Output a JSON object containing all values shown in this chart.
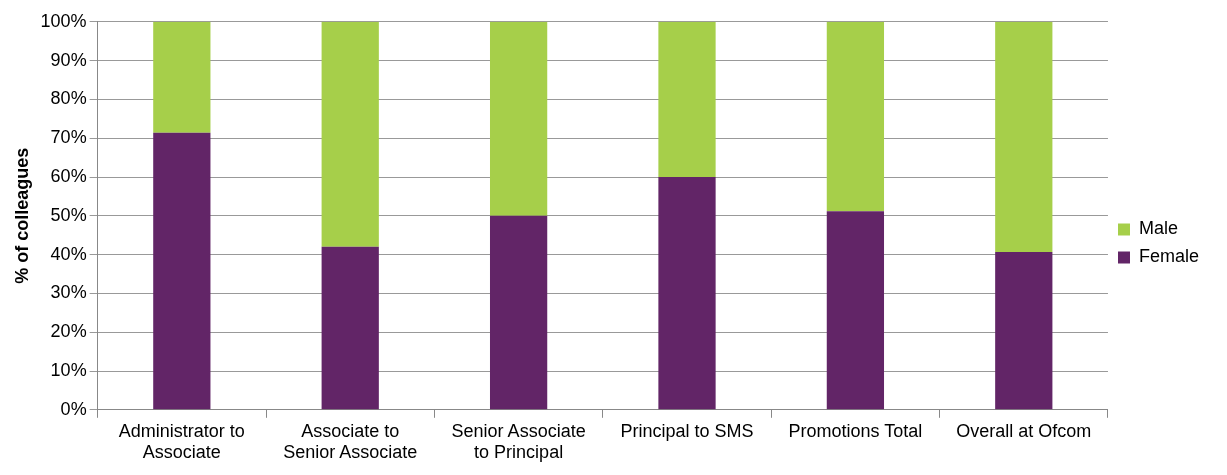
{
  "chart_data": {
    "type": "bar",
    "stacked": true,
    "ylabel": "% of colleagues",
    "categories": [
      "Administrator to Associate",
      "Associate to Senior Associate",
      "Senior Associate to Principal",
      "Principal to SMS",
      "Promotions Total",
      "Overall at Ofcom"
    ],
    "series": [
      {
        "name": "Female",
        "color": "#622567",
        "values": [
          71.4,
          42,
          50,
          60,
          51.2,
          40.7
        ]
      },
      {
        "name": "Male",
        "color": "#a6cf4a",
        "values": [
          28.6,
          58,
          50,
          40,
          48.8,
          59.3
        ]
      }
    ],
    "ylim": [
      0,
      100
    ],
    "yticks": [
      {
        "value": 0,
        "label": "0%"
      },
      {
        "value": 10,
        "label": "10%"
      },
      {
        "value": 20,
        "label": "20%"
      },
      {
        "value": 30,
        "label": "30%"
      },
      {
        "value": 40,
        "label": "40%"
      },
      {
        "value": 50,
        "label": "50%"
      },
      {
        "value": 60,
        "label": "60%"
      },
      {
        "value": 70,
        "label": "70%"
      },
      {
        "value": 80,
        "label": "80%"
      },
      {
        "value": 90,
        "label": "90%"
      },
      {
        "value": 100,
        "label": "100%"
      }
    ],
    "grid": "y",
    "legend": "right"
  }
}
